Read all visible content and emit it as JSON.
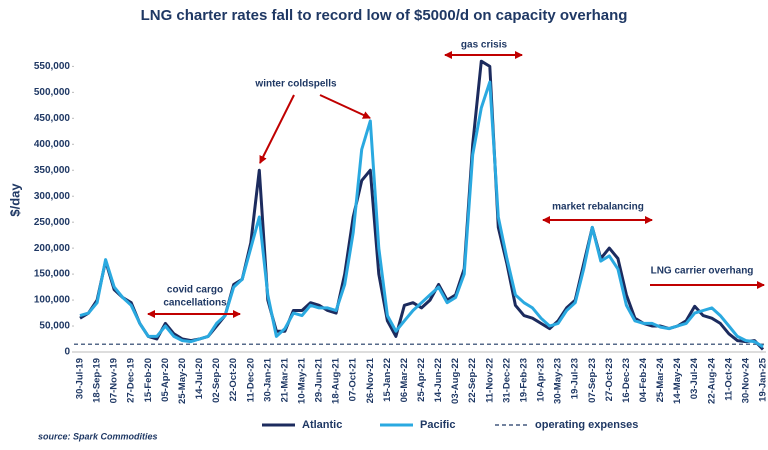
{
  "chart_data": {
    "type": "line",
    "title": "LNG charter rates fall to record low of $5000/d on capacity overhang",
    "y_label": "$/day",
    "source": "source: Spark Commodities",
    "categories": [
      "30-Jul-19",
      null,
      "18-Sep-19",
      null,
      "07-Nov-19",
      null,
      "27-Dec-19",
      null,
      "15-Feb-20",
      null,
      "05-Apr-20",
      null,
      "25-May-20",
      null,
      "14-Jul-20",
      null,
      "02-Sep-20",
      null,
      "22-Oct-20",
      null,
      "11-Dec-20",
      null,
      "30-Jan-21",
      null,
      "21-Mar-21",
      null,
      "10-May-21",
      null,
      "29-Jun-21",
      null,
      "18-Aug-21",
      null,
      "07-Oct-21",
      null,
      "26-Nov-21",
      null,
      "15-Jan-22",
      null,
      "06-Mar-22",
      null,
      "25-Apr-22",
      null,
      "14-Jun-22",
      null,
      "03-Aug-22",
      null,
      "22-Sep-22",
      null,
      "11-Nov-22",
      null,
      "31-Dec-22",
      null,
      "19-Feb-23",
      null,
      "10-Apr-23",
      null,
      "30-May-23",
      null,
      "19-Jul-23",
      null,
      "07-Sep-23",
      null,
      "27-Oct-23",
      null,
      "16-Dec-23",
      null,
      "04-Feb-24",
      null,
      "25-Mar-24",
      null,
      "14-May-24",
      null,
      "03-Jul-24",
      null,
      "22-Aug-24",
      null,
      "11-Oct-24",
      null,
      "30-Nov-24",
      null,
      "19-Jan-25"
    ],
    "series": [
      {
        "name": "Atlantic",
        "color": "#1c2b5e",
        "values": [
          65000,
          75000,
          100000,
          175000,
          120000,
          105000,
          95000,
          55000,
          30000,
          25000,
          55000,
          35000,
          25000,
          22000,
          25000,
          30000,
          50000,
          70000,
          130000,
          140000,
          210000,
          350000,
          100000,
          40000,
          40000,
          80000,
          80000,
          95000,
          90000,
          80000,
          75000,
          150000,
          260000,
          330000,
          350000,
          150000,
          60000,
          30000,
          90000,
          95000,
          85000,
          100000,
          130000,
          100000,
          110000,
          160000,
          400000,
          560000,
          550000,
          240000,
          170000,
          90000,
          70000,
          65000,
          55000,
          45000,
          60000,
          85000,
          100000,
          170000,
          240000,
          180000,
          200000,
          180000,
          110000,
          65000,
          55000,
          50000,
          50000,
          45000,
          50000,
          60000,
          88000,
          70000,
          65000,
          55000,
          35000,
          22000,
          20000,
          22000,
          5000
        ]
      },
      {
        "name": "Pacific",
        "color": "#2aa9e0",
        "values": [
          70000,
          75000,
          95000,
          178000,
          125000,
          105000,
          90000,
          55000,
          30000,
          30000,
          50000,
          30000,
          22000,
          20000,
          25000,
          30000,
          55000,
          70000,
          125000,
          140000,
          200000,
          260000,
          110000,
          30000,
          45000,
          75000,
          70000,
          90000,
          85000,
          85000,
          80000,
          130000,
          230000,
          390000,
          445000,
          200000,
          70000,
          40000,
          60000,
          80000,
          95000,
          110000,
          125000,
          95000,
          105000,
          150000,
          380000,
          470000,
          520000,
          260000,
          180000,
          110000,
          95000,
          85000,
          65000,
          50000,
          55000,
          80000,
          95000,
          160000,
          240000,
          175000,
          185000,
          160000,
          90000,
          60000,
          55000,
          55000,
          48000,
          45000,
          50000,
          55000,
          75000,
          80000,
          85000,
          70000,
          50000,
          30000,
          22000,
          20000,
          10000
        ]
      }
    ],
    "reference_line": {
      "name": "operating expenses",
      "value": 15000,
      "color": "#1f3864"
    },
    "ylim": [
      0,
      570000
    ],
    "yticks": [
      0,
      {
        "value": 50000,
        "label": "50,000"
      },
      {
        "value": 100000,
        "label": "100,000"
      },
      {
        "value": 150000,
        "label": "150,000"
      },
      {
        "value": 200000,
        "label": "200,000"
      },
      {
        "value": 250000,
        "label": "250,000"
      },
      {
        "value": 300000,
        "label": "300,000"
      },
      {
        "value": 350000,
        "label": "350,000"
      },
      {
        "value": 400000,
        "label": "400,000"
      },
      {
        "value": 450000,
        "label": "450,000"
      },
      {
        "value": 500000,
        "label": "500,000"
      },
      {
        "value": 550000,
        "label": "550,000"
      }
    ],
    "grid": false,
    "legend": "bottom",
    "annotations": [
      {
        "lines": [
          "covid cargo",
          "cancellations"
        ]
      },
      {
        "lines": [
          "winter coldspells"
        ]
      },
      {
        "lines": [
          "gas crisis"
        ]
      },
      {
        "lines": [
          "market rebalancing"
        ]
      },
      {
        "lines": [
          "LNG carrier overhang"
        ]
      }
    ]
  }
}
